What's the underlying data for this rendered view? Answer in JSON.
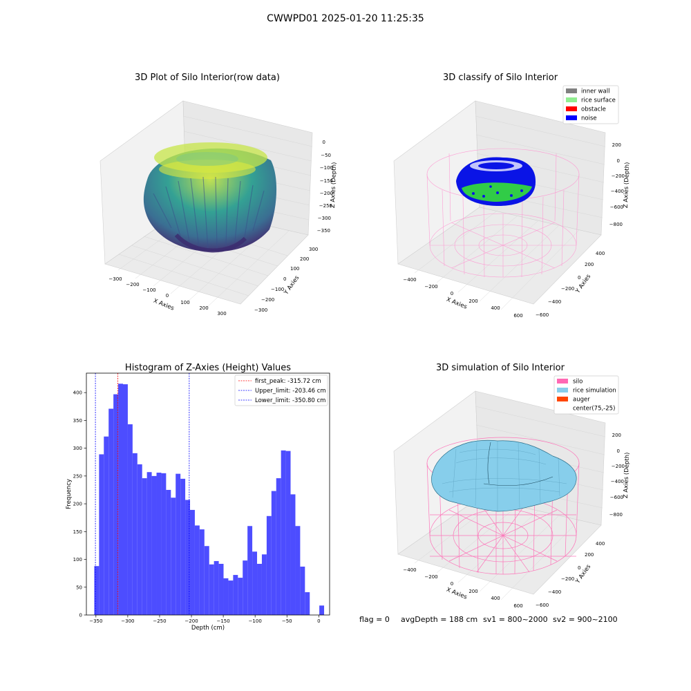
{
  "figure": {
    "suptitle": "CWWPD01 2025-01-20 11:25:35"
  },
  "panels": {
    "raw": {
      "title": "3D Plot of Silo Interior(row data)",
      "xlabel": "X Axies",
      "ylabel": "Y Axies",
      "zlabel": "Z Axies (Depth)",
      "x_ticks": [
        "−300",
        "−200",
        "−100",
        "0",
        "100",
        "200",
        "300"
      ],
      "y_ticks": [
        "−300",
        "−200",
        "−100",
        "0",
        "100",
        "200",
        "300"
      ],
      "z_ticks": [
        "0",
        "−50",
        "−100",
        "−150",
        "−200",
        "−250",
        "−300",
        "−350"
      ]
    },
    "classify": {
      "title": "3D classify of Silo Interior",
      "xlabel": "X Axies",
      "ylabel": "Y Axies",
      "zlabel": "Z Axies (Depth)",
      "x_ticks": [
        "−400",
        "−200",
        "0",
        "200",
        "400",
        "600"
      ],
      "y_ticks": [
        "−600",
        "−400",
        "−200",
        "0",
        "200",
        "400"
      ],
      "z_ticks": [
        "200",
        "0",
        "−200",
        "−400",
        "−600",
        "−800"
      ],
      "legend": [
        {
          "label": "inner wall",
          "color": "#808080"
        },
        {
          "label": "rice surface",
          "color": "#90ee90"
        },
        {
          "label": "obstacle",
          "color": "#ff0000"
        },
        {
          "label": "noise",
          "color": "#0000ff"
        }
      ]
    },
    "simulation": {
      "title": "3D simulation of Silo Interior",
      "xlabel": "X Axies",
      "ylabel": "Y Axies",
      "zlabel": "Z Axies (Depth)",
      "x_ticks": [
        "−400",
        "−200",
        "0",
        "200",
        "400",
        "600"
      ],
      "y_ticks": [
        "−600",
        "−400",
        "−200",
        "0",
        "200",
        "400"
      ],
      "z_ticks": [
        "200",
        "0",
        "−200",
        "−400",
        "−600",
        "−800"
      ],
      "legend": [
        {
          "label": "silo",
          "color": "#ff69b4"
        },
        {
          "label": "rice simulation",
          "color": "#87ceeb"
        },
        {
          "label": "auger",
          "color": "#ff4500"
        },
        {
          "label": "center(75,-25)",
          "color": ""
        }
      ]
    },
    "footer": {
      "flag": "flag = 0",
      "avg": "avgDepth = 188 cm",
      "sv1": "sv1 = 800~2000",
      "sv2": "sv2 = 900~2100"
    }
  },
  "chart_data": [
    {
      "type": "bar",
      "subtype": "histogram",
      "title": "Histogram of Z-Axies (Height) Values",
      "xlabel": "Depth (cm)",
      "ylabel": "Frequency",
      "xlim": [
        -365,
        17
      ],
      "ylim": [
        0,
        435
      ],
      "x_ticks": [
        -350,
        -300,
        -250,
        -200,
        -150,
        -100,
        -50,
        0
      ],
      "y_ticks": [
        0,
        50,
        100,
        150,
        200,
        250,
        300,
        350,
        400
      ],
      "bar_color": "#4d4dff",
      "bin_start": -352.6,
      "bin_width": 7.52,
      "values": [
        88,
        289,
        321,
        371,
        397,
        416,
        415,
        343,
        291,
        271,
        246,
        257,
        250,
        256,
        255,
        225,
        211,
        254,
        245,
        207,
        189,
        161,
        154,
        124,
        91,
        97,
        92,
        66,
        62,
        72,
        67,
        98,
        160,
        114,
        92,
        109,
        178,
        223,
        246,
        296,
        295,
        217,
        160,
        87,
        41,
        0,
        0,
        17
      ],
      "vlines": [
        {
          "label": "first_peak: -315.72 cm",
          "x": -315.72,
          "color": "#ff0000"
        },
        {
          "label": "Upper_limit: -203.46 cm",
          "x": -203.46,
          "color": "#0000ff"
        },
        {
          "label": "Lower_limit: -350.80 cm",
          "x": -350.8,
          "color": "#0000ff"
        }
      ],
      "legend_position": "upper right",
      "grid": false
    }
  ]
}
